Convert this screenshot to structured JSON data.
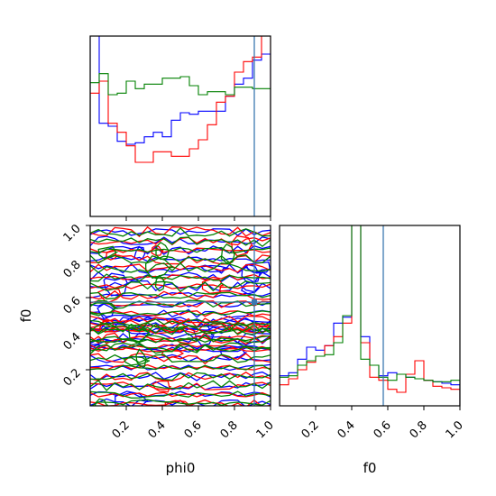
{
  "chart_data": {
    "type": "corner",
    "parameters": [
      "phi0",
      "f0"
    ],
    "axis_labels": {
      "x_left": "phi0",
      "x_right": "f0",
      "y_left": "f0"
    },
    "ticks": {
      "phi0": [
        "0.2",
        "0.4",
        "0.6",
        "0.8",
        "1.0"
      ],
      "f0": [
        "0.2",
        "0.4",
        "0.6",
        "0.8",
        "1.0"
      ],
      "f0_y": [
        "0.2",
        "0.4",
        "0.6",
        "0.8",
        "1.0"
      ]
    },
    "range": {
      "phi0": [
        0,
        1
      ],
      "f0": [
        0,
        1
      ]
    },
    "truth": {
      "phi0": 0.91,
      "f0": 0.575,
      "color": "#3b78b0"
    },
    "series": [
      {
        "color": "#0000ff",
        "hist_phi0": [
          1.3,
          0.62,
          0.6,
          0.5,
          0.48,
          0.49,
          0.53,
          0.56,
          0.53,
          0.64,
          0.69,
          0.68,
          0.7,
          0.7,
          0.7,
          0.8,
          0.88,
          0.92,
          1.04,
          1.08
        ],
        "hist_f0": [
          0.2,
          0.22,
          0.31,
          0.39,
          0.37,
          0.4,
          0.55,
          0.59,
          1.3,
          0.46,
          0.27,
          0.2,
          0.22,
          0.21,
          0.19,
          0.18,
          0.17,
          0.16,
          0.15,
          0.14
        ]
      },
      {
        "color": "#ff0000",
        "hist_phi0": [
          0.82,
          0.9,
          0.62,
          0.56,
          0.47,
          0.36,
          0.36,
          0.43,
          0.43,
          0.4,
          0.4,
          0.45,
          0.51,
          0.61,
          0.76,
          0.8,
          0.96,
          1.03,
          1.06,
          1.3
        ],
        "hist_f0": [
          0.14,
          0.18,
          0.24,
          0.29,
          0.33,
          0.4,
          0.46,
          0.55,
          1.3,
          0.42,
          0.19,
          0.17,
          0.11,
          0.09,
          0.21,
          0.3,
          0.17,
          0.13,
          0.12,
          0.11
        ]
      },
      {
        "color": "#008000",
        "hist_phi0": [
          0.89,
          0.95,
          0.81,
          0.82,
          0.9,
          0.85,
          0.88,
          0.88,
          0.92,
          0.92,
          0.93,
          0.87,
          0.81,
          0.83,
          0.83,
          0.81,
          0.86,
          0.86,
          0.85,
          0.85
        ],
        "hist_f0": [
          0.19,
          0.2,
          0.27,
          0.3,
          0.33,
          0.34,
          0.42,
          0.6,
          1.3,
          0.31,
          0.27,
          0.19,
          0.17,
          0.21,
          0.19,
          0.18,
          0.17,
          0.16,
          0.16,
          0.17
        ]
      }
    ]
  }
}
